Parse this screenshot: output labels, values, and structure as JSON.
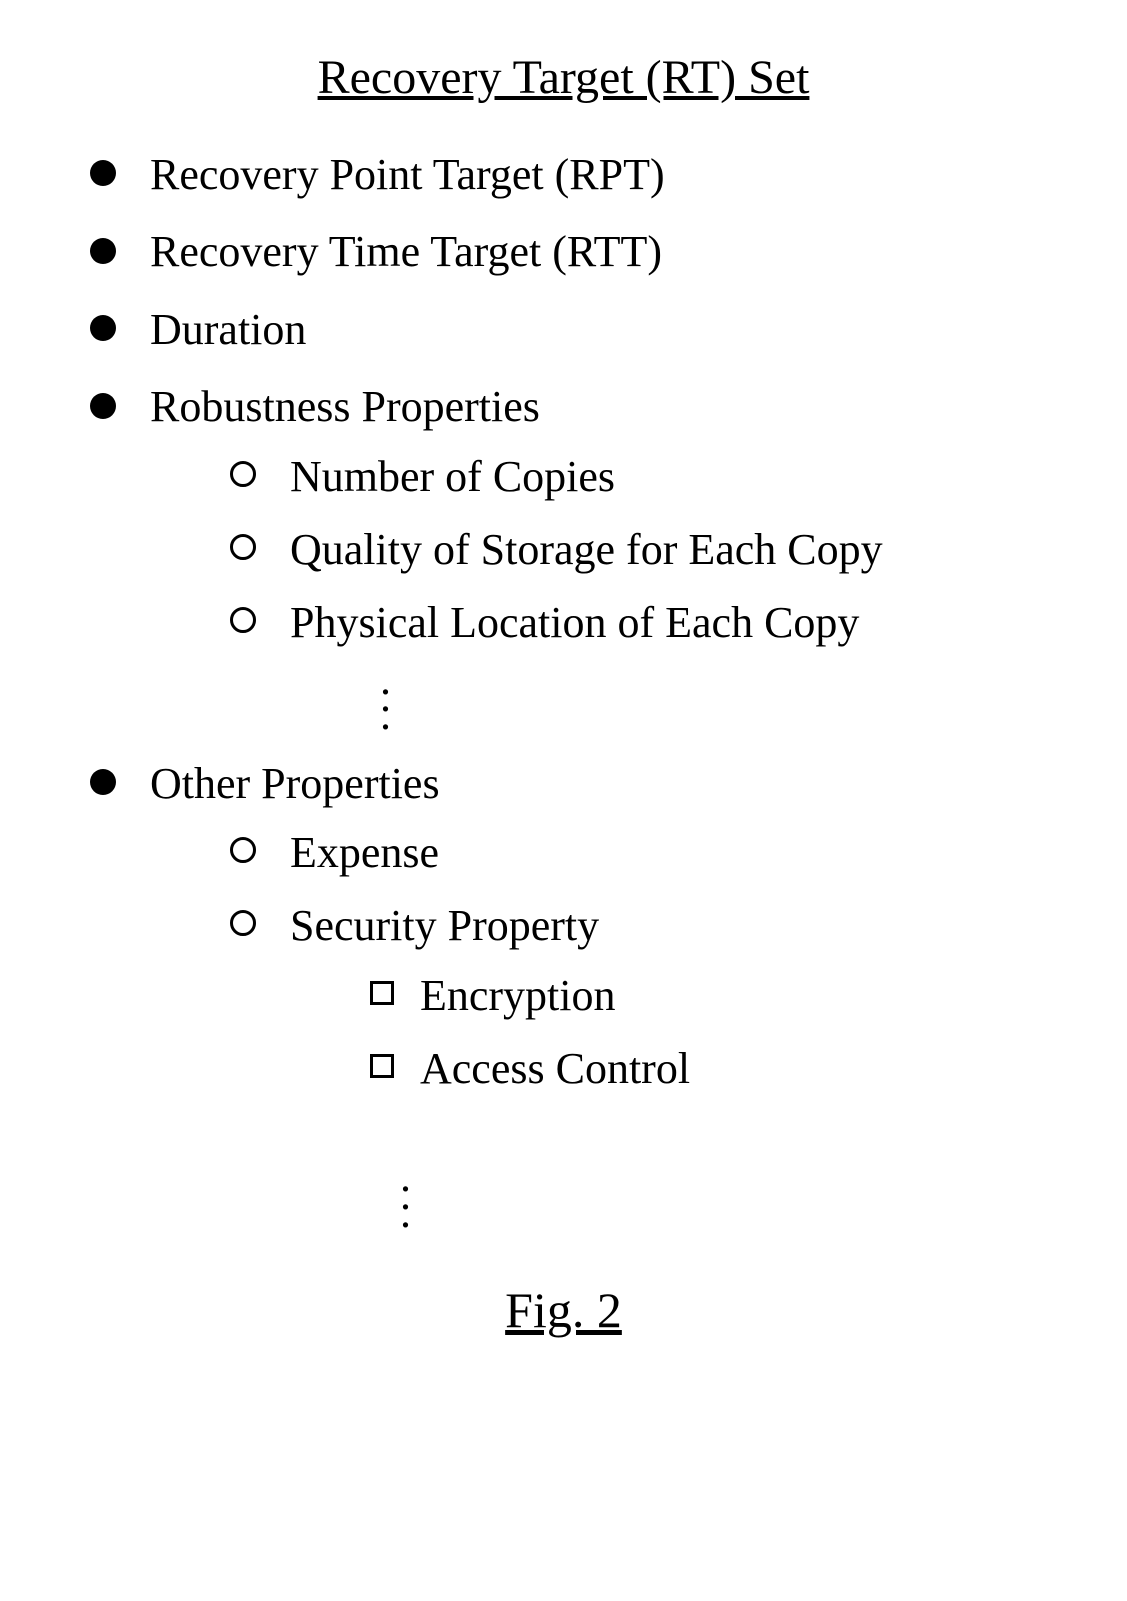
{
  "title": "Recovery Target (RT) Set",
  "figure_label": "Fig. 2",
  "items": {
    "rpt": "Recovery Point Target (RPT)",
    "rtt": "Recovery Time Target (RTT)",
    "duration": "Duration",
    "robustness": "Robustness Properties",
    "robustness_sub": {
      "copies": "Number of Copies",
      "quality": "Quality of Storage for Each Copy",
      "location": "Physical Location of Each Copy"
    },
    "other": "Other Properties",
    "other_sub": {
      "expense": "Expense",
      "security": "Security Property",
      "security_sub": {
        "encryption": "Encryption",
        "access": "Access Control"
      }
    }
  },
  "colors": {
    "text": "#000000",
    "background": "#ffffff"
  },
  "fonts": {
    "family": "Times New Roman",
    "title_size_pt": 36,
    "body_size_pt": 33,
    "fig_size_pt": 38
  }
}
